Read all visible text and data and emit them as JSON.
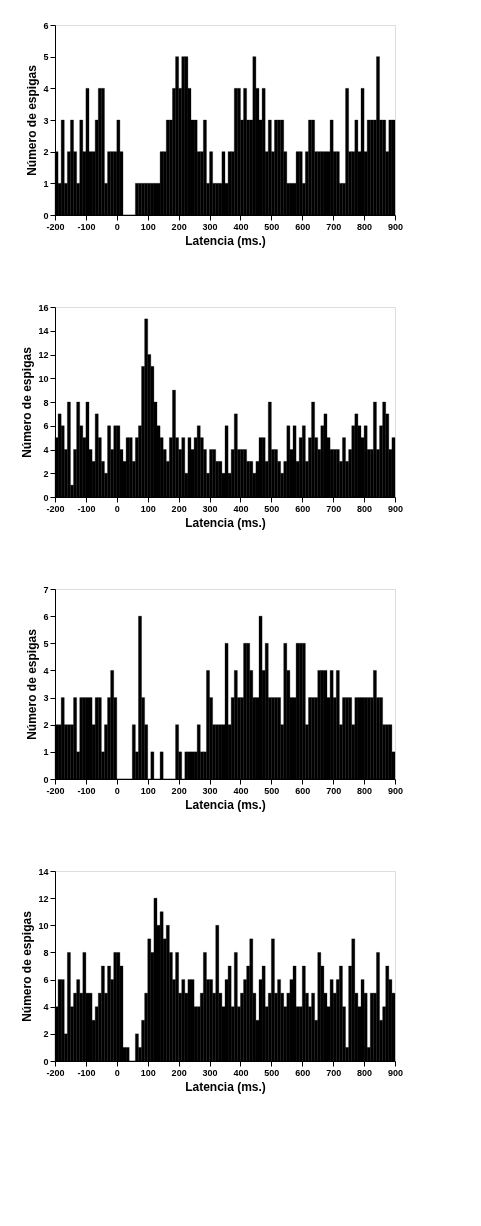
{
  "chart_data": [
    {
      "type": "histogram",
      "xlabel": "Latencia (ms.)",
      "ylabel": "Número de espigas",
      "color": "#000000",
      "grid": false,
      "bins": [
        -200,
        -190,
        -180,
        -170,
        -160,
        -150,
        -140,
        -130,
        -120,
        -110,
        -100,
        -90,
        -80,
        -70,
        -60,
        -50,
        -40,
        -30,
        -20,
        -10,
        0,
        10,
        20,
        30,
        40,
        50,
        60,
        70,
        80,
        90,
        100,
        110,
        120,
        130,
        140,
        150,
        160,
        170,
        180,
        190,
        200,
        210,
        220,
        230,
        240,
        250,
        260,
        270,
        280,
        290,
        300,
        310,
        320,
        330,
        340,
        350,
        360,
        370,
        380,
        390,
        400,
        410,
        420,
        430,
        440,
        450,
        460,
        470,
        480,
        490,
        500,
        510,
        520,
        530,
        540,
        550,
        560,
        570,
        580,
        590,
        600,
        610,
        620,
        630,
        640,
        650,
        660,
        670,
        680,
        690,
        700,
        710,
        720,
        730,
        740,
        750,
        760,
        770,
        780,
        790,
        800,
        810,
        820,
        830,
        840,
        850,
        860,
        870,
        880,
        890,
        900
      ],
      "values": [
        2,
        1,
        3,
        1,
        2,
        3,
        2,
        1,
        3,
        2,
        4,
        2,
        2,
        3,
        4,
        4,
        1,
        2,
        2,
        2,
        3,
        2,
        0,
        0,
        0,
        0,
        1,
        1,
        1,
        1,
        1,
        1,
        1,
        1,
        2,
        2,
        3,
        3,
        4,
        5,
        4,
        5,
        5,
        4,
        3,
        3,
        2,
        2,
        3,
        1,
        2,
        1,
        1,
        1,
        2,
        1,
        2,
        2,
        4,
        4,
        3,
        4,
        3,
        3,
        5,
        4,
        3,
        4,
        2,
        3,
        2,
        3,
        3,
        3,
        2,
        1,
        1,
        1,
        2,
        2,
        1,
        2,
        3,
        3,
        2,
        2,
        2,
        2,
        2,
        3,
        2,
        2,
        1,
        1,
        4,
        2,
        2,
        3,
        2,
        4,
        2,
        3,
        3,
        3,
        5,
        3,
        3,
        2,
        3,
        3
      ],
      "xlim": [
        -200,
        900
      ],
      "xticks": [
        -200,
        -100,
        0,
        100,
        200,
        300,
        400,
        500,
        600,
        700,
        800,
        900
      ],
      "ylim": [
        0,
        6
      ],
      "yticks": [
        0,
        1,
        2,
        3,
        4,
        5,
        6
      ]
    },
    {
      "type": "histogram",
      "xlabel": "Latencia (ms.)",
      "ylabel": "Número de espigas",
      "color": "#000000",
      "grid": false,
      "bins": [
        -200,
        -190,
        -180,
        -170,
        -160,
        -150,
        -140,
        -130,
        -120,
        -110,
        -100,
        -90,
        -80,
        -70,
        -60,
        -50,
        -40,
        -30,
        -20,
        -10,
        0,
        10,
        20,
        30,
        40,
        50,
        60,
        70,
        80,
        90,
        100,
        110,
        120,
        130,
        140,
        150,
        160,
        170,
        180,
        190,
        200,
        210,
        220,
        230,
        240,
        250,
        260,
        270,
        280,
        290,
        300,
        310,
        320,
        330,
        340,
        350,
        360,
        370,
        380,
        390,
        400,
        410,
        420,
        430,
        440,
        450,
        460,
        470,
        480,
        490,
        500,
        510,
        520,
        530,
        540,
        550,
        560,
        570,
        580,
        590,
        600,
        610,
        620,
        630,
        640,
        650,
        660,
        670,
        680,
        690,
        700,
        710,
        720,
        730,
        740,
        750,
        760,
        770,
        780,
        790,
        800,
        810,
        820,
        830,
        840,
        850,
        860,
        870,
        880,
        890,
        900
      ],
      "values": [
        5,
        7,
        6,
        4,
        8,
        1,
        4,
        8,
        6,
        5,
        8,
        4,
        3,
        7,
        5,
        3,
        2,
        6,
        4,
        6,
        6,
        4,
        3,
        5,
        5,
        3,
        5,
        6,
        11,
        15,
        12,
        11,
        8,
        6,
        5,
        4,
        3,
        5,
        9,
        5,
        4,
        5,
        2,
        5,
        4,
        5,
        6,
        5,
        4,
        2,
        4,
        4,
        3,
        3,
        2,
        6,
        2,
        4,
        7,
        4,
        4,
        4,
        3,
        3,
        2,
        3,
        5,
        5,
        3,
        8,
        4,
        4,
        3,
        2,
        3,
        6,
        4,
        6,
        3,
        5,
        6,
        3,
        5,
        8,
        5,
        4,
        6,
        7,
        5,
        4,
        4,
        4,
        3,
        5,
        3,
        4,
        6,
        7,
        6,
        5,
        6,
        4,
        4,
        8,
        4,
        6,
        8,
        7,
        4,
        5
      ],
      "xlim": [
        -200,
        900
      ],
      "xticks": [
        -200,
        -100,
        0,
        100,
        200,
        300,
        400,
        500,
        600,
        700,
        800,
        900
      ],
      "ylim": [
        0,
        16
      ],
      "yticks": [
        0,
        2,
        4,
        6,
        8,
        10,
        12,
        14,
        16
      ]
    },
    {
      "type": "histogram",
      "xlabel": "Latencia (ms.)",
      "ylabel": "Número de espigas",
      "color": "#000000",
      "grid": false,
      "bins": [
        -200,
        -190,
        -180,
        -170,
        -160,
        -150,
        -140,
        -130,
        -120,
        -110,
        -100,
        -90,
        -80,
        -70,
        -60,
        -50,
        -40,
        -30,
        -20,
        -10,
        0,
        10,
        20,
        30,
        40,
        50,
        60,
        70,
        80,
        90,
        100,
        110,
        120,
        130,
        140,
        150,
        160,
        170,
        180,
        190,
        200,
        210,
        220,
        230,
        240,
        250,
        260,
        270,
        280,
        290,
        300,
        310,
        320,
        330,
        340,
        350,
        360,
        370,
        380,
        390,
        400,
        410,
        420,
        430,
        440,
        450,
        460,
        470,
        480,
        490,
        500,
        510,
        520,
        530,
        540,
        550,
        560,
        570,
        580,
        590,
        600,
        610,
        620,
        630,
        640,
        650,
        660,
        670,
        680,
        690,
        700,
        710,
        720,
        730,
        740,
        750,
        760,
        770,
        780,
        790,
        800,
        810,
        820,
        830,
        840,
        850,
        860,
        870,
        880,
        890,
        900
      ],
      "values": [
        2,
        2,
        3,
        2,
        2,
        2,
        3,
        1,
        3,
        3,
        3,
        3,
        2,
        3,
        3,
        1,
        2,
        3,
        4,
        3,
        0,
        0,
        0,
        0,
        0,
        2,
        1,
        6,
        3,
        2,
        0,
        1,
        0,
        0,
        1,
        0,
        0,
        0,
        0,
        2,
        1,
        0,
        1,
        1,
        1,
        1,
        2,
        1,
        1,
        4,
        3,
        2,
        2,
        2,
        2,
        5,
        2,
        3,
        4,
        3,
        3,
        5,
        5,
        4,
        3,
        3,
        6,
        4,
        5,
        3,
        3,
        3,
        3,
        2,
        5,
        4,
        3,
        3,
        5,
        5,
        5,
        2,
        3,
        3,
        3,
        4,
        4,
        4,
        3,
        4,
        3,
        4,
        2,
        3,
        3,
        3,
        2,
        3,
        3,
        3,
        3,
        3,
        3,
        4,
        3,
        3,
        2,
        2,
        2,
        1
      ],
      "xlim": [
        -200,
        900
      ],
      "xticks": [
        -200,
        -100,
        0,
        100,
        200,
        300,
        400,
        500,
        600,
        700,
        800,
        900
      ],
      "ylim": [
        0,
        7
      ],
      "yticks": [
        0,
        1,
        2,
        3,
        4,
        5,
        6,
        7
      ]
    },
    {
      "type": "histogram",
      "xlabel": "Latencia (ms.)",
      "ylabel": "Número de espigas",
      "color": "#000000",
      "grid": false,
      "bins": [
        -200,
        -190,
        -180,
        -170,
        -160,
        -150,
        -140,
        -130,
        -120,
        -110,
        -100,
        -90,
        -80,
        -70,
        -60,
        -50,
        -40,
        -30,
        -20,
        -10,
        0,
        10,
        20,
        30,
        40,
        50,
        60,
        70,
        80,
        90,
        100,
        110,
        120,
        130,
        140,
        150,
        160,
        170,
        180,
        190,
        200,
        210,
        220,
        230,
        240,
        250,
        260,
        270,
        280,
        290,
        300,
        310,
        320,
        330,
        340,
        350,
        360,
        370,
        380,
        390,
        400,
        410,
        420,
        430,
        440,
        450,
        460,
        470,
        480,
        490,
        500,
        510,
        520,
        530,
        540,
        550,
        560,
        570,
        580,
        590,
        600,
        610,
        620,
        630,
        640,
        650,
        660,
        670,
        680,
        690,
        700,
        710,
        720,
        730,
        740,
        750,
        760,
        770,
        780,
        790,
        800,
        810,
        820,
        830,
        840,
        850,
        860,
        870,
        880,
        890,
        900
      ],
      "values": [
        4,
        6,
        6,
        2,
        8,
        4,
        5,
        6,
        5,
        8,
        5,
        5,
        3,
        4,
        5,
        7,
        5,
        7,
        6,
        8,
        8,
        7,
        1,
        1,
        0,
        0,
        2,
        1,
        3,
        5,
        9,
        8,
        12,
        10,
        11,
        9,
        10,
        8,
        6,
        8,
        5,
        6,
        5,
        6,
        6,
        4,
        4,
        5,
        8,
        6,
        6,
        5,
        10,
        5,
        4,
        6,
        7,
        4,
        8,
        4,
        5,
        6,
        7,
        9,
        5,
        3,
        6,
        7,
        4,
        5,
        9,
        5,
        6,
        5,
        4,
        5,
        6,
        7,
        4,
        4,
        7,
        5,
        4,
        5,
        3,
        8,
        7,
        5,
        4,
        6,
        5,
        6,
        7,
        4,
        1,
        7,
        9,
        5,
        4,
        6,
        5,
        1,
        5,
        5,
        8,
        3,
        4,
        7,
        6,
        5
      ],
      "xlim": [
        -200,
        900
      ],
      "xticks": [
        -200,
        -100,
        0,
        100,
        200,
        300,
        400,
        500,
        600,
        700,
        800,
        900
      ],
      "ylim": [
        0,
        14
      ],
      "yticks": [
        0,
        2,
        4,
        6,
        8,
        10,
        12,
        14
      ]
    }
  ]
}
